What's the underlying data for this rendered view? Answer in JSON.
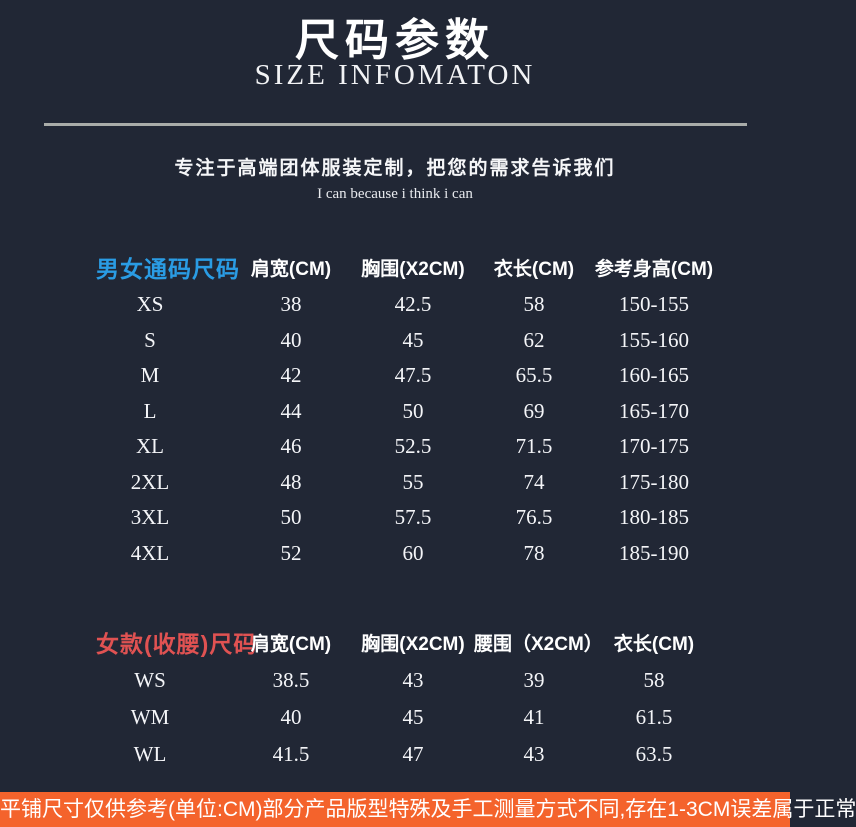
{
  "page": {
    "title_cn": "尺码参数",
    "title_en": "SIZE INFOMATON",
    "slogan": "专注于高端团体服装定制，把您的需求告诉我们",
    "slogan_sub": "I can because i think i can",
    "footer_note": "平铺尺寸仅供参考(单位:CM)部分产品版型特殊及手工测量方式不同,存在1-3CM误差属于正常"
  },
  "colors": {
    "background": "#212735",
    "accent_blue": "#2a9ce4",
    "accent_red": "#e05252",
    "footer_orange": "#f4632c",
    "divider_gray": "#a9aca9"
  },
  "unisex_table": {
    "label": "男女通码尺码",
    "headers": [
      "肩宽(CM)",
      "胸围(X2CM)",
      "衣长(CM)",
      "参考身高(CM)"
    ],
    "rows": [
      {
        "size": "XS",
        "values": [
          "38",
          "42.5",
          "58",
          "150-155"
        ]
      },
      {
        "size": "S",
        "values": [
          "40",
          "45",
          "62",
          "155-160"
        ]
      },
      {
        "size": "M",
        "values": [
          "42",
          "47.5",
          "65.5",
          "160-165"
        ]
      },
      {
        "size": "L",
        "values": [
          "44",
          "50",
          "69",
          "165-170"
        ]
      },
      {
        "size": "XL",
        "values": [
          "46",
          "52.5",
          "71.5",
          "170-175"
        ]
      },
      {
        "size": "2XL",
        "values": [
          "48",
          "55",
          "74",
          "175-180"
        ]
      },
      {
        "size": "3XL",
        "values": [
          "50",
          "57.5",
          "76.5",
          "180-185"
        ]
      },
      {
        "size": "4XL",
        "values": [
          "52",
          "60",
          "78",
          "185-190"
        ]
      }
    ]
  },
  "women_table": {
    "label": "女款(收腰)尺码",
    "headers": [
      "肩宽(CM)",
      "胸围(X2CM)",
      "腰围（X2CM）",
      "衣长(CM)"
    ],
    "rows": [
      {
        "size": "WS",
        "values": [
          "38.5",
          "43",
          "39",
          "58"
        ]
      },
      {
        "size": "WM",
        "values": [
          "40",
          "45",
          "41",
          "61.5"
        ]
      },
      {
        "size": "WL",
        "values": [
          "41.5",
          "47",
          "43",
          "63.5"
        ]
      }
    ]
  }
}
